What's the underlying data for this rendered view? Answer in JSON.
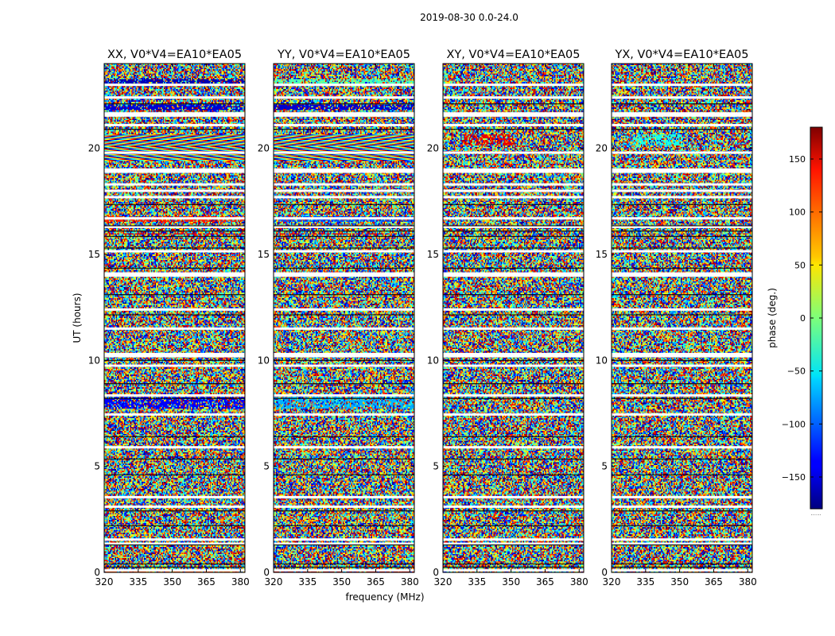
{
  "figure": {
    "suptitle": "2019-08-30 0.0-24.0"
  },
  "chart_data": {
    "type": "heatmap",
    "title": "2019-08-30 0.0-24.0",
    "xlabel": "frequency (MHz)",
    "ylabel": "UT (hours)",
    "xlim": [
      320,
      382
    ],
    "ylim": [
      0,
      24
    ],
    "x_ticks": [
      320,
      335,
      350,
      365,
      380
    ],
    "y_ticks": [
      0,
      5,
      10,
      15,
      20
    ],
    "panels": [
      {
        "title": "XX, V0*V4=EA10*EA05",
        "pol": "XX",
        "mode": "xx"
      },
      {
        "title": "YY, V0*V4=EA10*EA05",
        "pol": "YY",
        "mode": "yy"
      },
      {
        "title": "XY, V0*V4=EA10*EA05",
        "pol": "XY",
        "mode": "xy"
      },
      {
        "title": "YX, V0*V4=EA10*EA05",
        "pol": "YX",
        "mode": "yx"
      }
    ],
    "colorbar": {
      "label": "phase (deg.)",
      "range": [
        -180,
        180
      ],
      "ticks": [
        -150,
        -100,
        -50,
        0,
        50,
        100,
        150
      ],
      "colormap": "jet",
      "extra_label": "......"
    },
    "flagged_ut_hours": [
      0.1,
      1.35,
      1.55,
      3.1,
      3.55,
      5.9,
      7.45,
      8.35,
      9.75,
      10.2,
      10.3,
      11.5,
      12.4,
      14.0,
      14.1,
      15.15,
      16.3,
      16.7,
      17.7,
      18.0,
      18.3,
      18.9,
      19.0,
      19.8,
      21.1,
      21.55,
      21.65,
      22.4,
      23.0
    ],
    "black_ut_hours": [
      0.25,
      0.4,
      1.3,
      2.2,
      2.9,
      4.6,
      5.35,
      6.4,
      8.2,
      8.9,
      10.0,
      12.15,
      13.1,
      14.35,
      15.3,
      15.85,
      16.1,
      16.35,
      17.35,
      20.9,
      22.1
    ]
  }
}
